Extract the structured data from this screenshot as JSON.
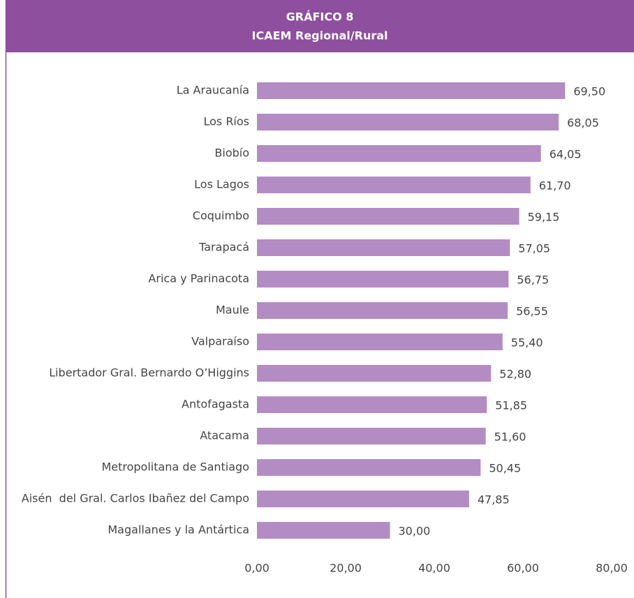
{
  "chart_data": {
    "type": "bar",
    "orientation": "horizontal",
    "title": "GRÁFICO 8",
    "subtitle": "ICAEM Regional/Rural",
    "categories": [
      "La Araucanía",
      "Los Ríos",
      "Biobío",
      "Los Lagos",
      "Coquimbo",
      "Tarapacá",
      "Arica y Parinacota",
      "Maule",
      "Valparaíso",
      "Libertador Gral. Bernardo O’Higgins",
      "Antofagasta",
      "Atacama",
      "Metropolitana de Santiago",
      "Aisén  del Gral. Carlos Ibañez del Campo",
      "Magallanes y la Antártica"
    ],
    "values": [
      69.5,
      68.05,
      64.05,
      61.7,
      59.15,
      57.05,
      56.75,
      56.55,
      55.4,
      52.8,
      51.85,
      51.6,
      50.45,
      47.85,
      30.0
    ],
    "value_labels": [
      "69,50",
      "68,05",
      "64,05",
      "61,70",
      "59,15",
      "57,05",
      "56,75",
      "56,55",
      "55,40",
      "52,80",
      "51,85",
      "51,60",
      "50,45",
      "47,85",
      "30,00"
    ],
    "color": "#b38cc4",
    "xlim": [
      0,
      80
    ],
    "xticks": [
      {
        "value": 0,
        "label": "0,00"
      },
      {
        "value": 20,
        "label": "20,00"
      },
      {
        "value": 40,
        "label": "40,00"
      },
      {
        "value": 60,
        "label": "60,00"
      },
      {
        "value": 80,
        "label": "80,00"
      }
    ],
    "grid": false
  }
}
